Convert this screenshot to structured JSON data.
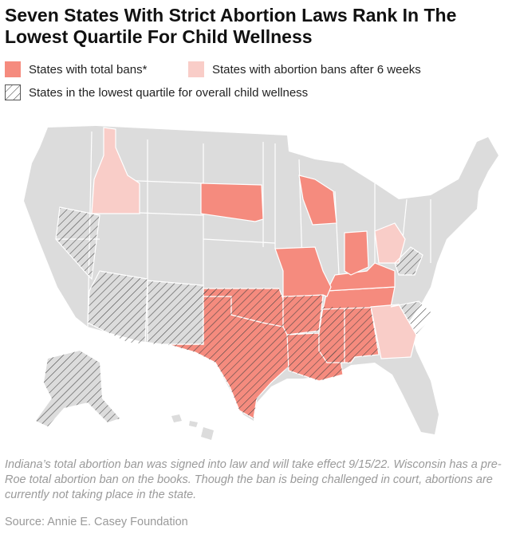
{
  "header": {
    "title": "Seven States With Strict Abortion Laws Rank In The Lowest Quartile For Child Wellness"
  },
  "legend": {
    "items": [
      "States with total bans*",
      "States with abortion bans after 6 weeks",
      "States in the lowest quartile for overall child wellness"
    ]
  },
  "footer": {
    "note": "Indiana’s total abortion ban was signed into law and will take effect 9/15/22. Wisconsin has a pre-Roe total abortion ban on the books. Though the ban is being challenged in court, abortions are currently not taking place in the state.",
    "source": "Source: Annie E. Casey Foundation"
  }
}
